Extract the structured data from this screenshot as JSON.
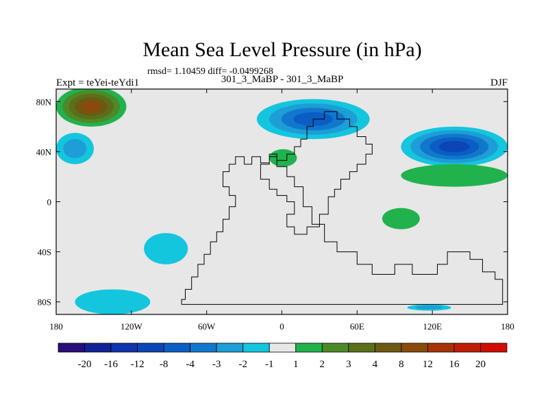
{
  "chart_data": {
    "type": "heatmap",
    "title": "Mean Sea Level Pressure (in hPa)",
    "stats_line": "rmsd= 1.10459 diff= -0.0499268",
    "experiment_label": "Expt = teYei-teYdi1",
    "comparison_label": "301_3_MaBP - 301_3_MaBP",
    "season_label": "DJF",
    "x_axis": {
      "range": [
        -180,
        180
      ],
      "ticks": [
        -180,
        -120,
        -60,
        0,
        60,
        120,
        180
      ],
      "tick_labels": [
        "180",
        "120W",
        "60W",
        "0",
        "60E",
        "120E",
        "180"
      ]
    },
    "y_axis": {
      "range": [
        -90,
        90
      ],
      "ticks": [
        80,
        40,
        0,
        -40,
        -80
      ],
      "tick_labels": [
        "80N",
        "40N",
        "0",
        "40S",
        "80S"
      ]
    },
    "colorbar": {
      "colors": [
        "#2a0f78",
        "#102296",
        "#1133ad",
        "#0c45b6",
        "#0a5dc4",
        "#1177cc",
        "#1d9ed6",
        "#14c5de",
        "#e7e7e7",
        "#22b24d",
        "#4c8a27",
        "#5b6f1a",
        "#6b5a12",
        "#8a4a0c",
        "#a83307",
        "#bf1e05",
        "#d10d00"
      ],
      "levels": [
        -20,
        -16,
        -12,
        -8,
        -4,
        -3,
        -2,
        -1,
        1,
        2,
        3,
        4,
        8,
        12,
        16,
        20
      ],
      "level_labels": [
        "-20",
        "-16",
        "-12",
        "-8",
        "-4",
        "-3",
        "-2",
        "-1",
        "1",
        "2",
        "3",
        "4",
        "8",
        "12",
        "16",
        "20"
      ]
    },
    "anomaly_regions": [
      {
        "name": "north-pacific-high",
        "lon": [
          -180,
          -124
        ],
        "lat": [
          60,
          92
        ],
        "bins": [
          1,
          2,
          3,
          4,
          8
        ]
      },
      {
        "name": "north-atlantic-low",
        "lon": [
          -20,
          70
        ],
        "lat": [
          50,
          82
        ],
        "bins": [
          -1,
          -2,
          -3,
          -4
        ]
      },
      {
        "name": "north-pacific-east-asia-low",
        "lon": [
          95,
          180
        ],
        "lat": [
          28,
          60
        ],
        "bins": [
          -1,
          -2,
          -3,
          -4,
          -8
        ]
      },
      {
        "name": "east-asia-north-pacific-high-band",
        "lon": [
          95,
          180
        ],
        "lat": [
          12,
          30
        ],
        "bins": [
          1
        ]
      },
      {
        "name": "atlantic-low-west",
        "lon": [
          -180,
          -150
        ],
        "lat": [
          30,
          55
        ],
        "bins": [
          -1,
          -2
        ]
      },
      {
        "name": "mediterranean-high",
        "lon": [
          -10,
          12
        ],
        "lat": [
          28,
          42
        ],
        "bins": [
          1
        ]
      },
      {
        "name": "indian-ocean-high",
        "lon": [
          80,
          110
        ],
        "lat": [
          -22,
          -5
        ],
        "bins": [
          1
        ]
      },
      {
        "name": "south-pacific-low",
        "lon": [
          -110,
          -75
        ],
        "lat": [
          -50,
          -25
        ],
        "bins": [
          -1
        ]
      },
      {
        "name": "southern-ocean-low",
        "lon": [
          -165,
          -105
        ],
        "lat": [
          -90,
          -70
        ],
        "bins": [
          -1
        ]
      },
      {
        "name": "antarctic-low-spots",
        "lon": [
          100,
          135
        ],
        "lat": [
          -87,
          -82
        ],
        "bins": [
          -1,
          -2
        ]
      }
    ]
  }
}
